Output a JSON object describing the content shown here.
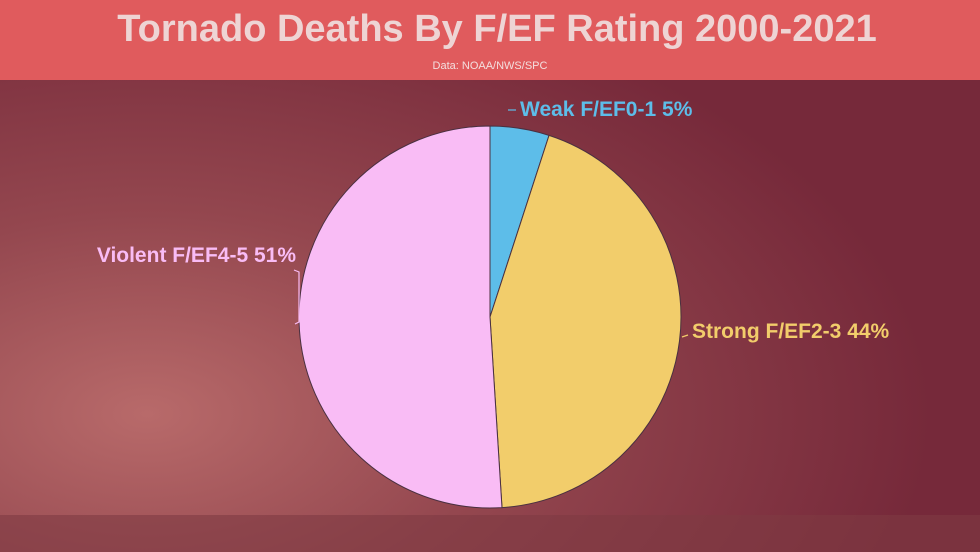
{
  "chart_data": {
    "type": "pie",
    "title": "Tornado Deaths By F/EF Rating 2000-2021",
    "subtitle": "Data: NOAA/NWS/SPC",
    "categories": [
      "Weak F/EF0-1",
      "Strong F/EF2-3",
      "Violent F/EF4-5"
    ],
    "values": [
      5,
      44,
      51
    ],
    "value_labels": [
      "5%",
      "44%",
      "51%"
    ],
    "colors": [
      "#5dbde9",
      "#f2cd6b",
      "#f9bcf5"
    ]
  }
}
